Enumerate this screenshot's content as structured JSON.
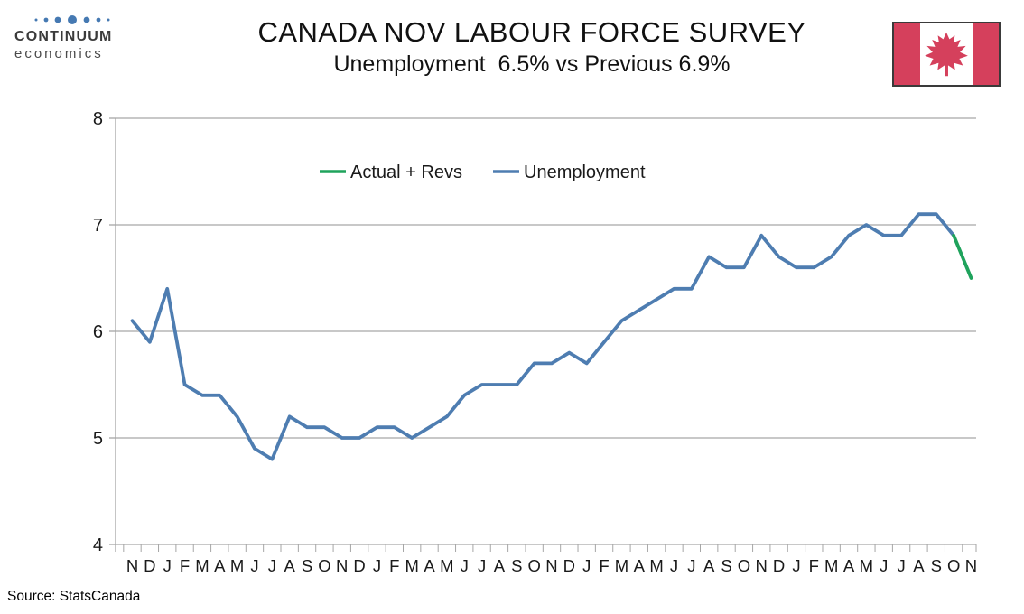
{
  "header": {
    "logo": {
      "line1": "CONTINUUM",
      "line2": "economics",
      "dots_color": "#4579B2"
    },
    "title": "CANADA NOV LABOUR FORCE SURVEY",
    "subtitle": "Unemployment  6.5% vs Previous 6.9%",
    "flag": {
      "country": "Canada",
      "red": "#D5405C",
      "border": "#3a3a3a"
    }
  },
  "chart_data": {
    "type": "line",
    "title": "CANADA NOV LABOUR FORCE SURVEY",
    "subtitle": "Unemployment  6.5% vs Previous 6.9%",
    "x_labels": [
      "N",
      "D",
      "J",
      "F",
      "M",
      "A",
      "M",
      "J",
      "J",
      "A",
      "S",
      "O",
      "N",
      "D",
      "J",
      "F",
      "M",
      "A",
      "M",
      "J",
      "J",
      "A",
      "S",
      "O",
      "N",
      "D",
      "J",
      "F",
      "M",
      "A",
      "M",
      "J",
      "J",
      "A",
      "S",
      "O",
      "N",
      "D",
      "J",
      "F",
      "M",
      "A",
      "M",
      "J",
      "J",
      "A",
      "S",
      "O",
      "N"
    ],
    "yticks": [
      8,
      7,
      6,
      5,
      4
    ],
    "ylim": [
      4,
      8
    ],
    "grid": "horizontal",
    "legend_position": "top-center",
    "axis_color": "#A6A6A6",
    "series": [
      {
        "name": "Actual + Revs",
        "color": "#1FA35C",
        "values": [
          null,
          null,
          null,
          null,
          null,
          null,
          null,
          null,
          null,
          null,
          null,
          null,
          null,
          null,
          null,
          null,
          null,
          null,
          null,
          null,
          null,
          null,
          null,
          null,
          null,
          null,
          null,
          null,
          null,
          null,
          null,
          null,
          null,
          null,
          null,
          null,
          null,
          null,
          null,
          null,
          null,
          null,
          null,
          null,
          null,
          null,
          null,
          6.9,
          6.5
        ]
      },
      {
        "name": "Unemployment",
        "color": "#4E7DB1",
        "values": [
          6.1,
          5.9,
          6.4,
          5.5,
          5.4,
          5.4,
          5.2,
          4.9,
          4.8,
          5.2,
          5.1,
          5.1,
          5.0,
          5.0,
          5.1,
          5.1,
          5.0,
          5.1,
          5.2,
          5.4,
          5.5,
          5.5,
          5.5,
          5.7,
          5.7,
          5.8,
          5.7,
          5.9,
          6.1,
          6.2,
          6.3,
          6.4,
          6.4,
          6.7,
          6.6,
          6.6,
          6.9,
          6.7,
          6.6,
          6.6,
          6.7,
          6.9,
          7.0,
          6.9,
          6.9,
          7.1,
          7.1,
          6.9,
          null
        ]
      }
    ]
  },
  "source": "Source: StatsCanada"
}
